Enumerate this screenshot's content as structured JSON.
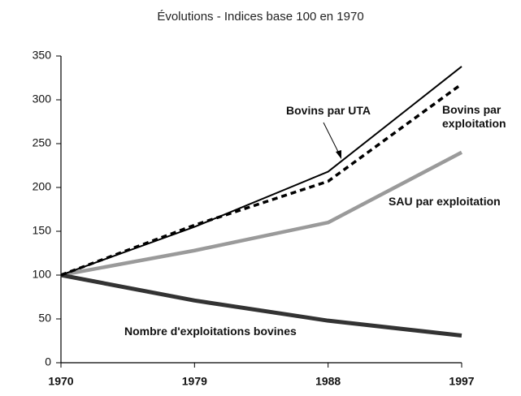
{
  "chart_data": {
    "type": "line",
    "title": "Évolutions - Indices base 100 en 1970",
    "x": [
      1970,
      1979,
      1988,
      1997
    ],
    "xlim": [
      1970,
      1997
    ],
    "xticks": [
      1970,
      1979,
      1988,
      1997
    ],
    "ylim": [
      0,
      350
    ],
    "yticks": [
      0,
      50,
      100,
      150,
      200,
      250,
      300,
      350
    ],
    "series": [
      {
        "name": "Bovins par UTA",
        "color": "#000000",
        "width": 2,
        "dashed": false,
        "values": [
          100,
          155,
          218,
          338
        ]
      },
      {
        "name": "Bovins par exploitation",
        "color": "#000000",
        "width": 3.5,
        "dashed": true,
        "values": [
          100,
          157,
          207,
          318
        ]
      },
      {
        "name": "SAU par exploitation",
        "color": "#9a9a9a",
        "width": 4.5,
        "dashed": false,
        "values": [
          100,
          128,
          160,
          240
        ]
      },
      {
        "name": "Nombre d'exploitations bovines",
        "color": "#333333",
        "width": 5,
        "dashed": false,
        "values": [
          100,
          71,
          48,
          31
        ]
      }
    ]
  }
}
